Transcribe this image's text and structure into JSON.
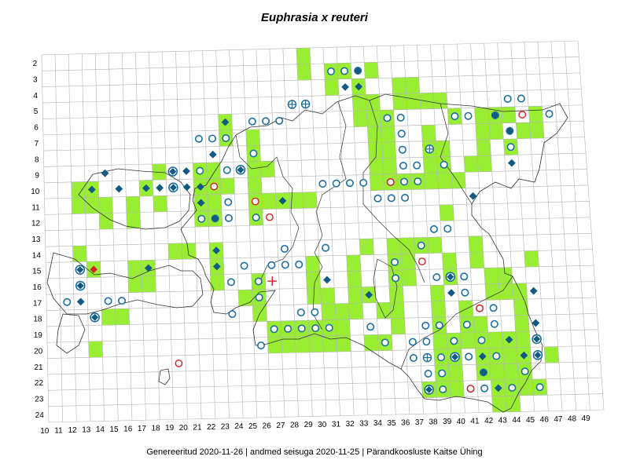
{
  "title": "Euphrasia x reuteri",
  "footer": "Genereeritud 2020-11-26  |  andmed seisuga 2020-11-25  |  Pärandkoosluste Kaitse Ühing",
  "colors": {
    "occupied_cell": "#99ee33",
    "grid": "#b4b4b4",
    "outline": "#333333",
    "circle": "#1d6fa0",
    "diamond": "#125a82",
    "red_marker": "#d42020"
  },
  "axis": {
    "x_labels": [
      "10",
      "11",
      "12",
      "13",
      "14",
      "15",
      "16",
      "17",
      "18",
      "19",
      "20",
      "21",
      "22",
      "23",
      "24",
      "25",
      "26",
      "27",
      "28",
      "29",
      "30",
      "31",
      "32",
      "33",
      "34",
      "35",
      "36",
      "37",
      "38",
      "39",
      "40",
      "41",
      "42",
      "43",
      "44",
      "45",
      "46",
      "47",
      "48",
      "49"
    ],
    "y_labels": [
      "2",
      "3",
      "4",
      "5",
      "6",
      "7",
      "8",
      "9",
      "10",
      "11",
      "12",
      "13",
      "14",
      "15",
      "16",
      "17",
      "18",
      "19",
      "20",
      "21",
      "22",
      "23",
      "24"
    ]
  },
  "cells": [
    [
      29,
      2
    ],
    [
      29,
      3
    ],
    [
      31,
      3
    ],
    [
      32,
      3
    ],
    [
      34,
      3
    ],
    [
      33,
      4
    ],
    [
      36,
      4
    ],
    [
      37,
      4
    ],
    [
      31,
      4
    ],
    [
      33,
      5
    ],
    [
      34,
      5
    ],
    [
      36,
      5
    ],
    [
      37,
      5
    ],
    [
      38,
      5
    ],
    [
      39,
      5
    ],
    [
      23,
      6
    ],
    [
      33,
      6
    ],
    [
      35,
      6
    ],
    [
      34,
      6
    ],
    [
      40,
      6
    ],
    [
      42,
      6
    ],
    [
      43,
      6
    ],
    [
      44,
      6
    ],
    [
      46,
      6
    ],
    [
      25,
      7
    ],
    [
      23,
      7
    ],
    [
      34,
      7
    ],
    [
      35,
      7
    ],
    [
      38,
      7
    ],
    [
      42,
      7
    ],
    [
      43,
      7
    ],
    [
      45,
      7
    ],
    [
      46,
      7
    ],
    [
      25,
      8
    ],
    [
      34,
      8
    ],
    [
      35,
      8
    ],
    [
      38,
      8
    ],
    [
      39,
      8
    ],
    [
      42,
      8
    ],
    [
      44,
      8
    ],
    [
      18,
      9
    ],
    [
      21,
      9
    ],
    [
      22,
      9
    ],
    [
      25,
      9
    ],
    [
      26,
      9
    ],
    [
      34,
      9
    ],
    [
      35,
      9
    ],
    [
      38,
      9
    ],
    [
      39,
      9
    ],
    [
      41,
      9
    ],
    [
      42,
      9
    ],
    [
      12,
      10
    ],
    [
      13,
      10
    ],
    [
      17,
      10
    ],
    [
      21,
      10
    ],
    [
      22,
      10
    ],
    [
      23,
      10
    ],
    [
      25,
      10
    ],
    [
      34,
      10
    ],
    [
      35,
      10
    ],
    [
      36,
      10
    ],
    [
      37,
      10
    ],
    [
      38,
      10
    ],
    [
      39,
      10
    ],
    [
      40,
      10
    ],
    [
      12,
      11
    ],
    [
      13,
      11
    ],
    [
      14,
      11
    ],
    [
      16,
      11
    ],
    [
      18,
      11
    ],
    [
      21,
      11
    ],
    [
      22,
      11
    ],
    [
      25,
      11
    ],
    [
      26,
      11
    ],
    [
      27,
      11
    ],
    [
      28,
      11
    ],
    [
      29,
      11
    ],
    [
      14,
      12
    ],
    [
      16,
      12
    ],
    [
      21,
      12
    ],
    [
      22,
      12
    ],
    [
      25,
      12
    ],
    [
      39,
      12
    ],
    [
      12,
      14
    ],
    [
      19,
      14
    ],
    [
      20,
      14
    ],
    [
      22,
      14
    ],
    [
      33,
      14
    ],
    [
      35,
      14
    ],
    [
      36,
      14
    ],
    [
      37,
      14
    ],
    [
      38,
      14
    ],
    [
      41,
      14
    ],
    [
      13,
      15
    ],
    [
      16,
      15
    ],
    [
      17,
      15
    ],
    [
      22,
      15
    ],
    [
      29,
      15
    ],
    [
      32,
      15
    ],
    [
      35,
      15
    ],
    [
      36,
      15
    ],
    [
      39,
      15
    ],
    [
      41,
      15
    ],
    [
      45,
      15
    ],
    [
      16,
      16
    ],
    [
      17,
      16
    ],
    [
      22,
      16
    ],
    [
      25,
      16
    ],
    [
      29,
      16
    ],
    [
      32,
      16
    ],
    [
      35,
      16
    ],
    [
      36,
      16
    ],
    [
      39,
      16
    ],
    [
      42,
      16
    ],
    [
      43,
      16
    ],
    [
      24,
      17
    ],
    [
      25,
      17
    ],
    [
      29,
      17
    ],
    [
      30,
      17
    ],
    [
      32,
      17
    ],
    [
      33,
      17
    ],
    [
      35,
      17
    ],
    [
      38,
      17
    ],
    [
      42,
      17
    ],
    [
      43,
      17
    ],
    [
      44,
      17
    ],
    [
      14,
      18
    ],
    [
      15,
      18
    ],
    [
      25,
      18
    ],
    [
      30,
      18
    ],
    [
      31,
      18
    ],
    [
      32,
      18
    ],
    [
      34,
      18
    ],
    [
      35,
      18
    ],
    [
      38,
      18
    ],
    [
      40,
      18
    ],
    [
      44,
      18
    ],
    [
      26,
      19
    ],
    [
      27,
      19
    ],
    [
      28,
      19
    ],
    [
      29,
      19
    ],
    [
      30,
      19
    ],
    [
      31,
      19
    ],
    [
      35,
      19
    ],
    [
      38,
      19
    ],
    [
      40,
      19
    ],
    [
      41,
      19
    ],
    [
      44,
      19
    ],
    [
      13,
      20
    ],
    [
      26,
      20
    ],
    [
      27,
      20
    ],
    [
      28,
      20
    ],
    [
      29,
      20
    ],
    [
      30,
      20
    ],
    [
      31,
      20
    ],
    [
      33,
      20
    ],
    [
      34,
      20
    ],
    [
      38,
      20
    ],
    [
      39,
      20
    ],
    [
      40,
      20
    ],
    [
      41,
      20
    ],
    [
      42,
      20
    ],
    [
      43,
      20
    ],
    [
      44,
      20
    ],
    [
      38,
      21
    ],
    [
      39,
      21
    ],
    [
      41,
      21
    ],
    [
      42,
      21
    ],
    [
      43,
      21
    ],
    [
      44,
      21
    ],
    [
      46,
      21
    ],
    [
      38,
      22
    ],
    [
      39,
      22
    ],
    [
      41,
      22
    ],
    [
      42,
      22
    ],
    [
      43,
      22
    ],
    [
      44,
      22
    ],
    [
      37,
      23
    ],
    [
      38,
      23
    ],
    [
      39,
      23
    ],
    [
      42,
      23
    ],
    [
      43,
      23
    ],
    [
      44,
      23
    ],
    [
      45,
      23
    ],
    [
      42,
      24
    ],
    [
      43,
      24
    ]
  ],
  "circles": [
    [
      31,
      3
    ],
    [
      32,
      3
    ],
    [
      33,
      3
    ],
    [
      44,
      5
    ],
    [
      45,
      5
    ],
    [
      25,
      6
    ],
    [
      26,
      6
    ],
    [
      27,
      6
    ],
    [
      35,
      6
    ],
    [
      36,
      6
    ],
    [
      40,
      6
    ],
    [
      41,
      6
    ],
    [
      43,
      6
    ],
    [
      47,
      6
    ],
    [
      21,
      7
    ],
    [
      22,
      7
    ],
    [
      23,
      7
    ],
    [
      36,
      7
    ],
    [
      44,
      7
    ],
    [
      25,
      8
    ],
    [
      36,
      8
    ],
    [
      38,
      8
    ],
    [
      44,
      8
    ],
    [
      21,
      9
    ],
    [
      23,
      9
    ],
    [
      36,
      9
    ],
    [
      37,
      9
    ],
    [
      39,
      9
    ],
    [
      30,
      10
    ],
    [
      31,
      10
    ],
    [
      32,
      10
    ],
    [
      33,
      10
    ],
    [
      35,
      10
    ],
    [
      36,
      10
    ],
    [
      37,
      10
    ],
    [
      23,
      11
    ],
    [
      34,
      11
    ],
    [
      35,
      11
    ],
    [
      36,
      11
    ],
    [
      21,
      12
    ],
    [
      22,
      12
    ],
    [
      23,
      12
    ],
    [
      25,
      12
    ],
    [
      38,
      13
    ],
    [
      39,
      13
    ],
    [
      27,
      14
    ],
    [
      30,
      14
    ],
    [
      37,
      14
    ],
    [
      26,
      15
    ],
    [
      27,
      15
    ],
    [
      28,
      15
    ],
    [
      24,
      15
    ],
    [
      35,
      15
    ],
    [
      23,
      16
    ],
    [
      25,
      16
    ],
    [
      35,
      16
    ],
    [
      38,
      16
    ],
    [
      40,
      16
    ],
    [
      11,
      17
    ],
    [
      14,
      17
    ],
    [
      15,
      17
    ],
    [
      25,
      17
    ],
    [
      40,
      17
    ],
    [
      28,
      18
    ],
    [
      29,
      18
    ],
    [
      23,
      18
    ],
    [
      41,
      18
    ],
    [
      42,
      18
    ],
    [
      26,
      19
    ],
    [
      27,
      19
    ],
    [
      28,
      19
    ],
    [
      29,
      19
    ],
    [
      30,
      19
    ],
    [
      33,
      19
    ],
    [
      37,
      19
    ],
    [
      38,
      19
    ],
    [
      40,
      19
    ],
    [
      42,
      19
    ],
    [
      25,
      20
    ],
    [
      34,
      20
    ],
    [
      36,
      20
    ],
    [
      37,
      20
    ],
    [
      39,
      20
    ],
    [
      41,
      20
    ],
    [
      36,
      21
    ],
    [
      38,
      21
    ],
    [
      40,
      21
    ],
    [
      42,
      21
    ],
    [
      37,
      22
    ],
    [
      38,
      22
    ],
    [
      41,
      22
    ],
    [
      44,
      22
    ],
    [
      38,
      23
    ],
    [
      40,
      23
    ],
    [
      41,
      23
    ],
    [
      43,
      23
    ],
    [
      45,
      23
    ]
  ],
  "diamonds": [
    [
      33,
      3
    ],
    [
      32,
      4
    ],
    [
      33,
      4
    ],
    [
      23,
      6
    ],
    [
      22,
      8
    ],
    [
      43,
      6
    ],
    [
      44,
      7
    ],
    [
      44,
      9
    ],
    [
      14,
      9
    ],
    [
      19,
      9
    ],
    [
      20,
      9
    ],
    [
      13,
      10
    ],
    [
      15,
      10
    ],
    [
      17,
      10
    ],
    [
      18,
      10
    ],
    [
      20,
      10
    ],
    [
      21,
      10
    ],
    [
      21,
      11
    ],
    [
      27,
      11
    ],
    [
      41,
      11
    ],
    [
      22,
      12
    ],
    [
      22,
      14
    ],
    [
      17,
      15
    ],
    [
      22,
      15
    ],
    [
      12,
      17
    ],
    [
      30,
      16
    ],
    [
      33,
      17
    ],
    [
      39,
      17
    ],
    [
      39,
      16
    ],
    [
      45,
      17
    ],
    [
      45,
      19
    ],
    [
      43,
      20
    ],
    [
      41,
      21
    ],
    [
      44,
      21
    ],
    [
      41,
      22
    ],
    [
      42,
      23
    ]
  ],
  "circled_diamonds": [
    [
      19,
      9
    ],
    [
      24,
      9
    ],
    [
      19,
      10
    ],
    [
      12,
      15
    ],
    [
      12,
      16
    ],
    [
      13,
      18
    ],
    [
      39,
      16
    ],
    [
      45,
      20
    ],
    [
      45,
      21
    ],
    [
      39,
      21
    ],
    [
      37,
      23
    ]
  ],
  "crosshair_circles": [
    [
      28,
      5
    ],
    [
      29,
      5
    ],
    [
      38,
      8
    ],
    [
      37,
      21
    ]
  ],
  "red_circles": [
    [
      26,
      12
    ],
    [
      22,
      10
    ],
    [
      25,
      11
    ],
    [
      35,
      10
    ],
    [
      45,
      6
    ],
    [
      37,
      15
    ],
    [
      41,
      18
    ],
    [
      40,
      23
    ],
    [
      19,
      21
    ]
  ],
  "red_diamonds": [
    [
      13,
      15
    ]
  ],
  "red_crosses": [
    [
      26,
      16
    ]
  ]
}
